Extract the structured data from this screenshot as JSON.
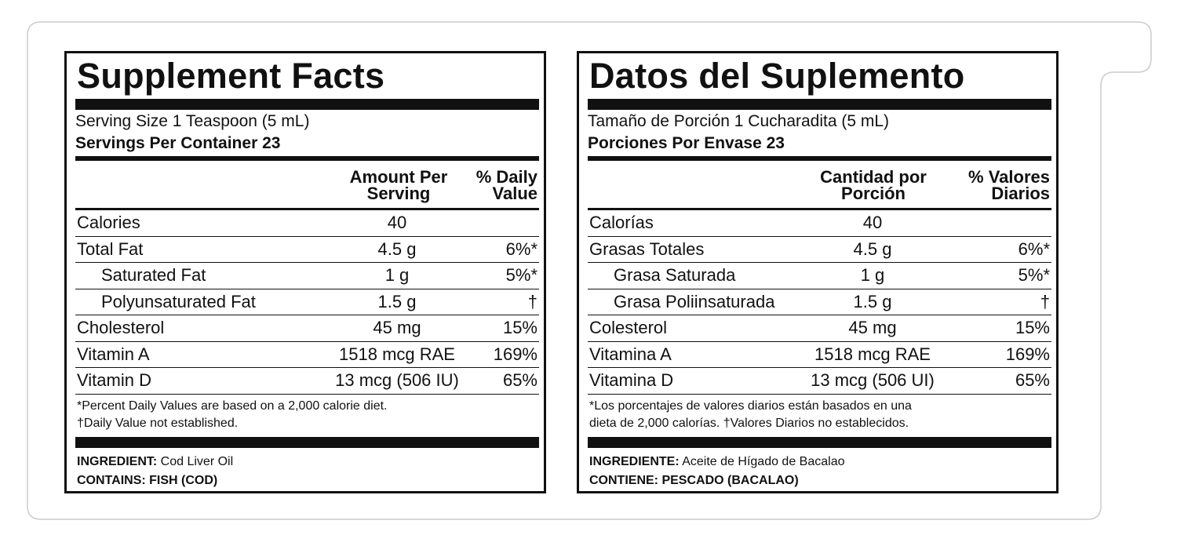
{
  "colors": {
    "ink": "#111111",
    "outline": "#cccccc",
    "background": "#ffffff"
  },
  "english": {
    "title": "Supplement Facts",
    "serving_size": "Serving Size 1 Teaspoon (5 mL)",
    "servings_per_container": "Servings Per Container 23",
    "col_amount": "Amount Per\nServing",
    "col_dv": "% Daily\nValue",
    "rows": [
      {
        "name": "Calories",
        "amount": "40",
        "dv": "",
        "indent": false
      },
      {
        "name": "Total Fat",
        "amount": "4.5 g",
        "dv": "6%*",
        "indent": false
      },
      {
        "name": "Saturated Fat",
        "amount": "1 g",
        "dv": "5%*",
        "indent": true
      },
      {
        "name": "Polyunsaturated Fat",
        "amount": "1.5 g",
        "dv": "†",
        "indent": true
      },
      {
        "name": "Cholesterol",
        "amount": "45 mg",
        "dv": "15%",
        "indent": false
      },
      {
        "name": "Vitamin A",
        "amount": "1518 mcg RAE",
        "dv": "169%",
        "indent": false
      },
      {
        "name": "Vitamin D",
        "amount": "13 mcg (506 IU)",
        "dv": "65%",
        "indent": false
      }
    ],
    "footnote_1": "*Percent Daily Values are based on a 2,000 calorie diet.",
    "footnote_2": "†Daily Value not established.",
    "ingredient_label": "INGREDIENT:",
    "ingredient_value": " Cod Liver Oil",
    "contains": "CONTAINS: FISH (COD)"
  },
  "spanish": {
    "title": "Datos del Suplemento",
    "serving_size": "Tamaño de Porción 1 Cucharadita (5 mL)",
    "servings_per_container": "Porciones Por Envase 23",
    "col_amount": "Cantidad por\nPorción",
    "col_dv": "% Valores\nDiarios",
    "rows": [
      {
        "name": "Calorías",
        "amount": "40",
        "dv": "",
        "indent": false
      },
      {
        "name": "Grasas Totales",
        "amount": "4.5 g",
        "dv": "6%*",
        "indent": false
      },
      {
        "name": "Grasa Saturada",
        "amount": "1 g",
        "dv": "5%*",
        "indent": true
      },
      {
        "name": "Grasa Poliinsaturada",
        "amount": "1.5 g",
        "dv": "†",
        "indent": true
      },
      {
        "name": "Colesterol",
        "amount": "45 mg",
        "dv": "15%",
        "indent": false
      },
      {
        "name": "Vitamina A",
        "amount": "1518 mcg RAE",
        "dv": "169%",
        "indent": false
      },
      {
        "name": "Vitamina D",
        "amount": "13 mcg (506 UI)",
        "dv": "65%",
        "indent": false
      }
    ],
    "footnote_1": "*Los porcentajes de valores diarios están basados en una",
    "footnote_2": "dieta de 2,000 calorías.  †Valores Diarios no establecidos.",
    "ingredient_label": "INGREDIENTE:",
    "ingredient_value": " Aceite de Hígado de Bacalao",
    "contains": "CONTIENE: PESCADO (BACALAO)"
  }
}
